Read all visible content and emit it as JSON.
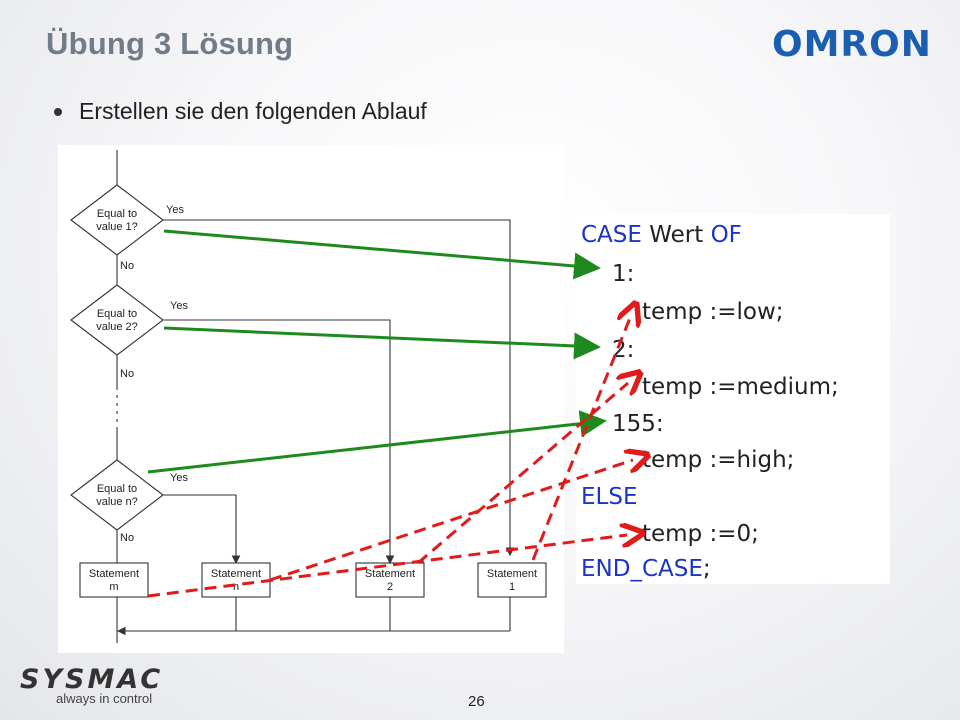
{
  "slide": {
    "title": "Übung 3  Lösung",
    "bullet": "Erstellen sie den folgenden Ablauf",
    "page_number": "26"
  },
  "logo": {
    "text": "OMRON",
    "color": "#1b5fae"
  },
  "brand": {
    "wordmark": "SYSMAC",
    "tagline": "always in control"
  },
  "flowchart": {
    "decisions": [
      {
        "line1": "Equal to",
        "line2": "value 1?",
        "yes": "Yes",
        "no": "No"
      },
      {
        "line1": "Equal to",
        "line2": "value 2?",
        "yes": "Yes",
        "no": "No"
      },
      {
        "line1": "Equal to",
        "line2": "value n?",
        "yes": "Yes",
        "no": "No"
      }
    ],
    "statements": [
      {
        "line1": "Statement",
        "line2": "m"
      },
      {
        "line1": "Statement",
        "line2": "n"
      },
      {
        "line1": "Statement",
        "line2": "2"
      },
      {
        "line1": "Statement",
        "line2": "1"
      }
    ]
  },
  "code": {
    "case_kw": "CASE",
    "var_name": " Wert ",
    "of_kw": "OF",
    "label_1": "1:",
    "stmt_1": "temp :=low;",
    "label_2": "2:",
    "stmt_2": "temp :=medium;",
    "label_3": "155:",
    "stmt_3": "temp :=high;",
    "else_kw": "ELSE",
    "stmt_else": "temp :=0;",
    "end_kw": "END_CASE",
    "end_punct": ";"
  },
  "colors": {
    "keyword": "#1a36c8",
    "green_arrow": "#1e8a1e",
    "red_arrow": "#e01b1b",
    "title": "#727c88"
  }
}
